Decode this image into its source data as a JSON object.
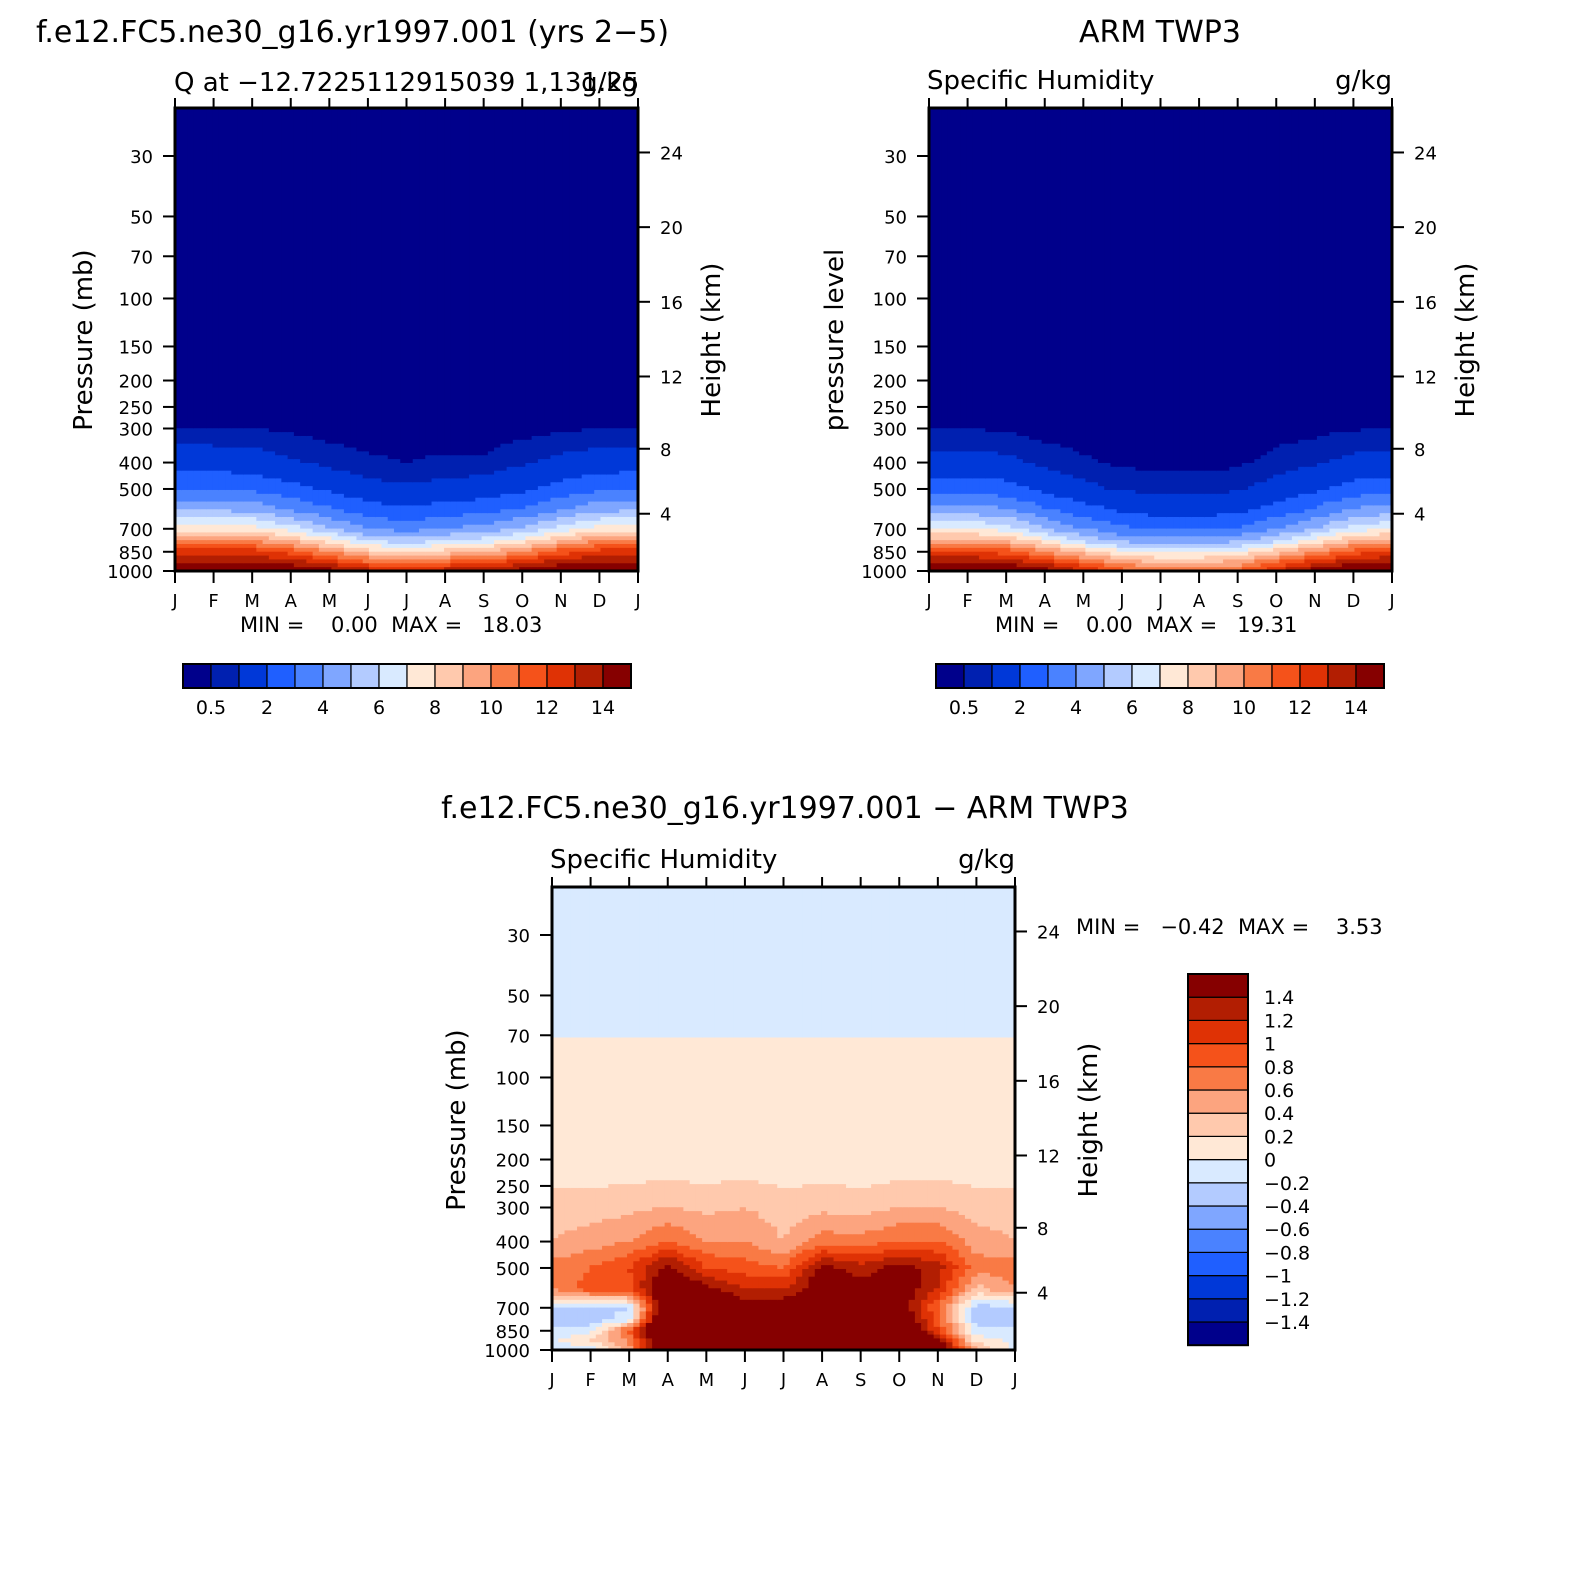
{
  "months": [
    "J",
    "F",
    "M",
    "A",
    "M",
    "J",
    "J",
    "A",
    "S",
    "O",
    "N",
    "D",
    "J"
  ],
  "pressure_ticks": [
    30,
    50,
    70,
    100,
    150,
    200,
    250,
    300,
    400,
    500,
    700,
    850,
    1000
  ],
  "height_ticks": [
    24,
    20,
    16,
    12,
    8,
    4
  ],
  "panels": [
    {
      "title": "f.e12.FC5.ne30_g16.yr1997.001 (yrs 2−5)",
      "left_label": "Q at −12.7225112915039 1,131.25",
      "right_label": "g/kg",
      "ylabel": "Pressure (mb)",
      "ylabel2": "Height (km)",
      "minmax": "MIN =    0.00  MAX =   18.03"
    },
    {
      "title": "ARM TWP3",
      "left_label": "Specific Humidity",
      "right_label": "g/kg",
      "ylabel": "pressure level",
      "ylabel2": "Height (km)",
      "minmax": "MIN =    0.00  MAX =   19.31"
    },
    {
      "title": "f.e12.FC5.ne30_g16.yr1997.001 − ARM TWP3",
      "left_label": "Specific Humidity",
      "right_label": "g/kg",
      "ylabel": "Pressure (mb)",
      "ylabel2": "Height (km)",
      "minmax": "MIN =   −0.42  MAX =    3.53"
    }
  ],
  "colorbars": {
    "horizontal": {
      "colors": [
        "#00008b",
        "#0020b0",
        "#0038d8",
        "#1f5fff",
        "#4a82ff",
        "#7fa6ff",
        "#b3cbff",
        "#d9eaff",
        "#ffe8d6",
        "#ffc9ad",
        "#fca47f",
        "#f97a45",
        "#f5521a",
        "#df3205",
        "#b21e02",
        "#860000"
      ],
      "labels": [
        "0.5",
        "2",
        "4",
        "6",
        "8",
        "10",
        "12",
        "14"
      ]
    },
    "vertical": {
      "colors": [
        "#00008b",
        "#0020b0",
        "#0038d8",
        "#1f5fff",
        "#4a82ff",
        "#7fa6ff",
        "#b3cbff",
        "#d9eaff",
        "#ffe8d6",
        "#ffc9ad",
        "#fca47f",
        "#f97a45",
        "#f5521a",
        "#df3205",
        "#b21e02",
        "#860000"
      ],
      "labels": [
        "1.4",
        "1.2",
        "1",
        "0.8",
        "0.6",
        "0.4",
        "0.2",
        "0",
        "−0.2",
        "−0.4",
        "−0.6",
        "−0.8",
        "−1",
        "−1.2",
        "−1.4"
      ]
    }
  },
  "chart_data": [
    {
      "type": "heatmap",
      "title": "f.e12.FC5.ne30_g16.yr1997.001 (yrs 2−5)",
      "subtitle": "Q at −12.7225112915039 1,131.25",
      "units": "g/kg",
      "xlabel": "",
      "ylabel": "Pressure (mb)",
      "ylabel_right": "Height (km)",
      "x": [
        "J",
        "F",
        "M",
        "A",
        "M",
        "J",
        "J",
        "A",
        "S",
        "O",
        "N",
        "D",
        "J"
      ],
      "y_scale": "log",
      "ylim": [
        1000,
        20
      ],
      "levels": [
        0.5,
        1,
        2,
        3,
        4,
        5,
        6,
        7,
        8,
        9,
        10,
        11,
        12,
        13,
        14
      ],
      "min": 0.0,
      "max": 18.03,
      "grid": false,
      "profile_pressure": [
        1000,
        925,
        850,
        775,
        700,
        600,
        500,
        400,
        300,
        200,
        100,
        50,
        30,
        20
      ],
      "profiles": [
        [
          15.5,
          14.0,
          12.5,
          10.0,
          7.5,
          5.0,
          3.0,
          1.5,
          0.5,
          0.05,
          0.01,
          0.01,
          0.01,
          0.01
        ],
        [
          15.5,
          14.0,
          12.5,
          10.0,
          7.5,
          5.0,
          3.0,
          1.5,
          0.5,
          0.05,
          0.01,
          0.01,
          0.01,
          0.01
        ],
        [
          15.5,
          14.0,
          12.5,
          10.0,
          7.5,
          4.8,
          2.8,
          1.4,
          0.5,
          0.05,
          0.01,
          0.01,
          0.01,
          0.01
        ],
        [
          15.2,
          13.5,
          11.5,
          9.0,
          6.5,
          4.0,
          2.3,
          1.1,
          0.4,
          0.05,
          0.01,
          0.01,
          0.01,
          0.01
        ],
        [
          14.5,
          12.5,
          10.0,
          7.5,
          5.2,
          3.2,
          1.8,
          0.8,
          0.3,
          0.05,
          0.01,
          0.01,
          0.01,
          0.01
        ],
        [
          13.5,
          11.0,
          8.5,
          6.0,
          4.0,
          2.5,
          1.3,
          0.6,
          0.2,
          0.05,
          0.01,
          0.01,
          0.01,
          0.01
        ],
        [
          13.5,
          10.5,
          8.0,
          5.5,
          3.6,
          2.2,
          1.1,
          0.5,
          0.2,
          0.05,
          0.01,
          0.01,
          0.01,
          0.01
        ],
        [
          13.5,
          11.0,
          8.5,
          6.0,
          4.0,
          2.5,
          1.3,
          0.6,
          0.2,
          0.05,
          0.01,
          0.01,
          0.01,
          0.01
        ],
        [
          14.0,
          11.5,
          9.0,
          6.5,
          4.4,
          2.7,
          1.4,
          0.6,
          0.2,
          0.05,
          0.01,
          0.01,
          0.01,
          0.01
        ],
        [
          14.5,
          12.5,
          10.0,
          7.5,
          5.2,
          3.2,
          1.8,
          0.9,
          0.3,
          0.05,
          0.01,
          0.01,
          0.01,
          0.01
        ],
        [
          15.2,
          13.5,
          11.5,
          9.0,
          6.5,
          4.0,
          2.4,
          1.2,
          0.4,
          0.05,
          0.01,
          0.01,
          0.01,
          0.01
        ],
        [
          15.5,
          14.0,
          12.5,
          10.0,
          7.5,
          4.8,
          2.8,
          1.4,
          0.5,
          0.05,
          0.01,
          0.01,
          0.01,
          0.01
        ],
        [
          15.5,
          14.0,
          12.5,
          10.0,
          7.5,
          5.0,
          3.0,
          1.5,
          0.5,
          0.05,
          0.01,
          0.01,
          0.01,
          0.01
        ]
      ]
    },
    {
      "type": "heatmap",
      "title": "ARM TWP3",
      "subtitle": "Specific Humidity",
      "units": "g/kg",
      "xlabel": "",
      "ylabel": "pressure level",
      "ylabel_right": "Height (km)",
      "x": [
        "J",
        "F",
        "M",
        "A",
        "M",
        "J",
        "J",
        "A",
        "S",
        "O",
        "N",
        "D",
        "J"
      ],
      "y_scale": "log",
      "ylim": [
        1000,
        20
      ],
      "levels": [
        0.5,
        1,
        2,
        3,
        4,
        5,
        6,
        7,
        8,
        9,
        10,
        11,
        12,
        13,
        14
      ],
      "min": 0.0,
      "max": 19.31,
      "grid": false,
      "profile_pressure": [
        1000,
        925,
        850,
        775,
        700,
        600,
        500,
        400,
        300,
        200,
        100,
        50,
        30,
        20
      ],
      "profiles": [
        [
          16.0,
          14.0,
          12.0,
          9.5,
          7.0,
          4.5,
          2.6,
          1.3,
          0.5,
          0.05,
          0.01,
          0.01,
          0.01,
          0.01
        ],
        [
          16.0,
          14.0,
          12.0,
          9.5,
          7.0,
          4.5,
          2.6,
          1.3,
          0.5,
          0.05,
          0.01,
          0.01,
          0.01,
          0.01
        ],
        [
          15.5,
          13.5,
          11.5,
          9.0,
          6.5,
          4.2,
          2.4,
          1.2,
          0.4,
          0.05,
          0.01,
          0.01,
          0.01,
          0.01
        ],
        [
          14.5,
          12.5,
          10.0,
          7.5,
          5.0,
          3.2,
          1.7,
          0.8,
          0.3,
          0.05,
          0.01,
          0.01,
          0.01,
          0.01
        ],
        [
          13.0,
          11.0,
          8.5,
          5.8,
          4.0,
          2.4,
          1.2,
          0.6,
          0.2,
          0.05,
          0.01,
          0.01,
          0.01,
          0.01
        ],
        [
          11.5,
          9.5,
          7.2,
          4.8,
          3.2,
          1.9,
          0.9,
          0.4,
          0.15,
          0.05,
          0.01,
          0.01,
          0.01,
          0.01
        ],
        [
          10.5,
          8.8,
          6.8,
          4.4,
          2.8,
          1.6,
          0.8,
          0.35,
          0.1,
          0.05,
          0.01,
          0.01,
          0.01,
          0.01
        ],
        [
          10.5,
          8.8,
          6.8,
          4.4,
          2.8,
          1.6,
          0.8,
          0.35,
          0.1,
          0.05,
          0.01,
          0.01,
          0.01,
          0.01
        ],
        [
          11.0,
          9.3,
          7.2,
          4.8,
          3.1,
          1.8,
          0.9,
          0.4,
          0.12,
          0.05,
          0.01,
          0.01,
          0.01,
          0.01
        ],
        [
          13.0,
          11.0,
          8.5,
          5.8,
          4.0,
          2.4,
          1.3,
          0.7,
          0.25,
          0.05,
          0.01,
          0.01,
          0.01,
          0.01
        ],
        [
          14.5,
          12.5,
          10.0,
          7.5,
          5.0,
          3.2,
          1.8,
          0.9,
          0.35,
          0.05,
          0.01,
          0.01,
          0.01,
          0.01
        ],
        [
          15.5,
          13.5,
          11.5,
          9.0,
          6.5,
          4.2,
          2.4,
          1.2,
          0.45,
          0.05,
          0.01,
          0.01,
          0.01,
          0.01
        ],
        [
          16.0,
          14.0,
          12.0,
          9.5,
          7.0,
          4.5,
          2.6,
          1.3,
          0.5,
          0.05,
          0.01,
          0.01,
          0.01,
          0.01
        ]
      ]
    },
    {
      "type": "heatmap",
      "title": "f.e12.FC5.ne30_g16.yr1997.001 − ARM TWP3",
      "subtitle": "Specific Humidity",
      "units": "g/kg",
      "xlabel": "",
      "ylabel": "Pressure (mb)",
      "ylabel_right": "Height (km)",
      "x": [
        "J",
        "F",
        "M",
        "A",
        "M",
        "J",
        "J",
        "A",
        "S",
        "O",
        "N",
        "D",
        "J"
      ],
      "y_scale": "log",
      "ylim": [
        1000,
        20
      ],
      "levels": [
        -1.4,
        -1.2,
        -1,
        -0.8,
        -0.6,
        -0.4,
        -0.2,
        0,
        0.2,
        0.4,
        0.6,
        0.8,
        1,
        1.2,
        1.4
      ],
      "min": -0.42,
      "max": 3.53,
      "grid": false,
      "profile_pressure": [
        1000,
        925,
        850,
        775,
        700,
        600,
        500,
        400,
        300,
        200,
        100,
        50,
        30,
        20
      ],
      "profiles": [
        [
          -0.1,
          -0.05,
          -0.15,
          -0.3,
          -0.25,
          0.6,
          0.7,
          0.4,
          0.3,
          0.05,
          0.05,
          -0.05,
          -0.05,
          -0.05
        ],
        [
          -0.1,
          0.2,
          -0.1,
          -0.3,
          -0.3,
          0.9,
          0.8,
          0.5,
          0.3,
          0.05,
          0.05,
          -0.05,
          -0.05,
          -0.05
        ],
        [
          0.5,
          0.6,
          0.9,
          -0.1,
          -0.2,
          0.9,
          1.0,
          0.6,
          0.35,
          0.05,
          0.05,
          -0.05,
          -0.05,
          -0.05
        ],
        [
          2.0,
          2.0,
          2.5,
          2.3,
          2.0,
          1.8,
          1.5,
          0.8,
          0.4,
          0.05,
          0.05,
          -0.05,
          -0.05,
          -0.05
        ],
        [
          3.0,
          3.0,
          3.0,
          2.5,
          2.0,
          1.5,
          1.0,
          0.6,
          0.35,
          0.05,
          0.05,
          -0.05,
          -0.05,
          -0.05
        ],
        [
          3.5,
          3.3,
          3.2,
          2.0,
          1.5,
          1.2,
          0.9,
          0.6,
          0.4,
          0.05,
          0.05,
          -0.05,
          -0.05,
          -0.05
        ],
        [
          3.5,
          3.3,
          3.0,
          2.0,
          1.6,
          1.2,
          0.8,
          0.4,
          0.3,
          0.05,
          0.05,
          -0.05,
          -0.05,
          -0.05
        ],
        [
          3.5,
          3.3,
          3.0,
          2.5,
          2.0,
          1.6,
          1.5,
          0.7,
          0.35,
          0.05,
          0.05,
          -0.05,
          -0.05,
          -0.05
        ],
        [
          3.3,
          3.0,
          2.5,
          2.0,
          1.6,
          1.5,
          1.3,
          0.7,
          0.3,
          0.05,
          0.05,
          -0.05,
          -0.05,
          -0.05
        ],
        [
          2.5,
          2.3,
          2.2,
          1.8,
          1.6,
          1.6,
          1.5,
          0.8,
          0.4,
          0.05,
          0.05,
          -0.05,
          -0.05,
          -0.05
        ],
        [
          1.8,
          1.5,
          1.0,
          0.9,
          0.8,
          1.2,
          1.3,
          0.8,
          0.4,
          0.05,
          0.05,
          -0.05,
          -0.05,
          -0.05
        ],
        [
          0.5,
          0.1,
          -0.1,
          -0.3,
          -0.3,
          0.3,
          0.7,
          0.5,
          0.3,
          0.05,
          0.05,
          -0.05,
          -0.05,
          -0.05
        ],
        [
          -0.1,
          -0.05,
          -0.15,
          -0.3,
          -0.25,
          0.6,
          0.7,
          0.4,
          0.3,
          0.05,
          0.05,
          -0.05,
          -0.05,
          -0.05
        ]
      ]
    }
  ]
}
